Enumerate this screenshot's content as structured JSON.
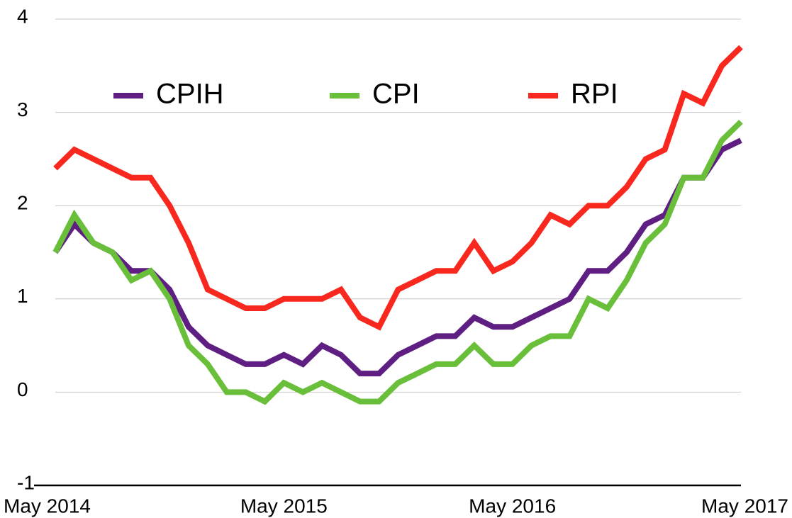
{
  "chart_data": {
    "type": "line",
    "categories": [
      "May 2014",
      null,
      null,
      null,
      null,
      null,
      null,
      null,
      null,
      null,
      null,
      null,
      "May 2015",
      null,
      null,
      null,
      null,
      null,
      null,
      null,
      null,
      null,
      null,
      null,
      "May 2016",
      null,
      null,
      null,
      null,
      null,
      null,
      null,
      null,
      null,
      null,
      null,
      "May 2017"
    ],
    "series": [
      {
        "name": "CPIH",
        "color": "#5f1e82",
        "values": [
          1.5,
          1.8,
          1.6,
          1.5,
          1.3,
          1.3,
          1.1,
          0.7,
          0.5,
          0.4,
          0.3,
          0.3,
          0.4,
          0.3,
          0.5,
          0.4,
          0.2,
          0.2,
          0.4,
          0.5,
          0.6,
          0.6,
          0.8,
          0.7,
          0.7,
          0.8,
          0.9,
          1.0,
          1.3,
          1.3,
          1.5,
          1.8,
          1.9,
          2.3,
          2.3,
          2.6,
          2.7
        ]
      },
      {
        "name": "CPI",
        "color": "#6abf3a",
        "values": [
          1.5,
          1.9,
          1.6,
          1.5,
          1.2,
          1.3,
          1.0,
          0.5,
          0.3,
          0.0,
          0.0,
          -0.1,
          0.1,
          0.0,
          0.1,
          0.0,
          -0.1,
          -0.1,
          0.1,
          0.2,
          0.3,
          0.3,
          0.5,
          0.3,
          0.3,
          0.5,
          0.6,
          0.6,
          1.0,
          0.9,
          1.2,
          1.6,
          1.8,
          2.3,
          2.3,
          2.7,
          2.9
        ]
      },
      {
        "name": "RPI",
        "color": "#f8281f",
        "values": [
          2.4,
          2.6,
          2.5,
          2.4,
          2.3,
          2.3,
          2.0,
          1.6,
          1.1,
          1.0,
          0.9,
          0.9,
          1.0,
          1.0,
          1.0,
          1.1,
          0.8,
          0.7,
          1.1,
          1.2,
          1.3,
          1.3,
          1.6,
          1.3,
          1.4,
          1.6,
          1.9,
          1.8,
          2.0,
          2.0,
          2.2,
          2.5,
          2.6,
          3.2,
          3.1,
          3.5,
          3.7
        ]
      }
    ],
    "ylim": [
      -1,
      4
    ],
    "yticks": [
      -1,
      0,
      1,
      2,
      3,
      4
    ],
    "grid": true,
    "legend": "top"
  }
}
